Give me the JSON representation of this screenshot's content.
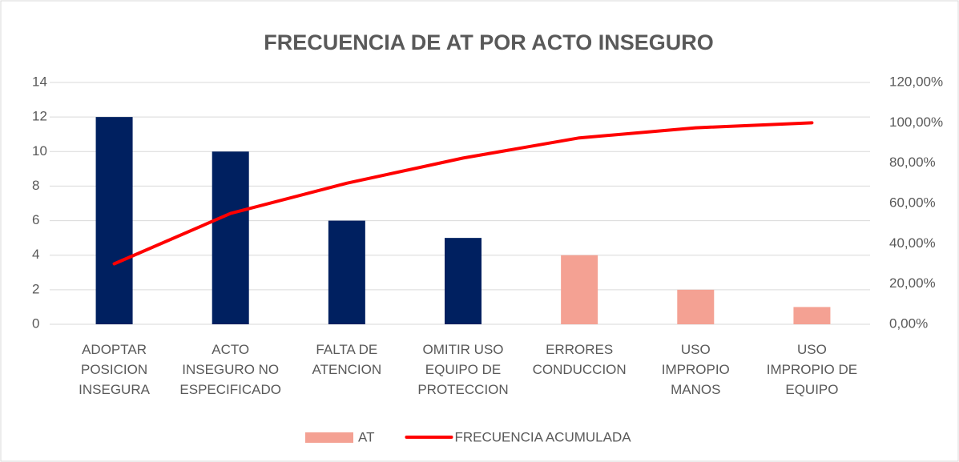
{
  "chart_data": {
    "type": "pareto",
    "title": "FRECUENCIA DE AT POR ACTO INSEGURO",
    "categories": [
      "ADOPTAR\nPOSICION\nINSEGURA",
      "ACTO\nINSEGURO NO\nESPECIFICADO",
      "FALTA DE\nATENCION",
      "OMITIR USO\nEQUIPO DE\nPROTECCION",
      "ERRORES\nCONDUCCION",
      "USO\nIMPROPIO\nMANOS",
      "USO\nIMPROPIO DE\nEQUIPO"
    ],
    "series": [
      {
        "name": "AT",
        "type": "bar",
        "color": "#f4a193",
        "colors": [
          "#002060",
          "#002060",
          "#002060",
          "#002060",
          "#f4a193",
          "#f4a193",
          "#f4a193"
        ],
        "values": [
          12,
          10,
          6,
          5,
          4,
          2,
          1
        ]
      },
      {
        "name": "FRECUENCIA ACUMULADA",
        "type": "line",
        "axis": "y2",
        "color": "#ff0000",
        "values": [
          30,
          55,
          70,
          82.5,
          92.5,
          97.5,
          100
        ]
      }
    ],
    "ylim": [
      0,
      14
    ],
    "yticks": [
      0,
      2,
      4,
      6,
      8,
      10,
      12,
      14
    ],
    "y2lim": [
      0,
      120
    ],
    "y2ticks": [
      {
        "value": 0,
        "label": "0,00%"
      },
      {
        "value": 20,
        "label": "20,00%"
      },
      {
        "value": 40,
        "label": "40,00%"
      },
      {
        "value": 60,
        "label": "60,00%"
      },
      {
        "value": 80,
        "label": "80,00%"
      },
      {
        "value": 100,
        "label": "100,00%"
      },
      {
        "value": 120,
        "label": "120,00%"
      }
    ],
    "grid": true,
    "legend": "bottom"
  }
}
